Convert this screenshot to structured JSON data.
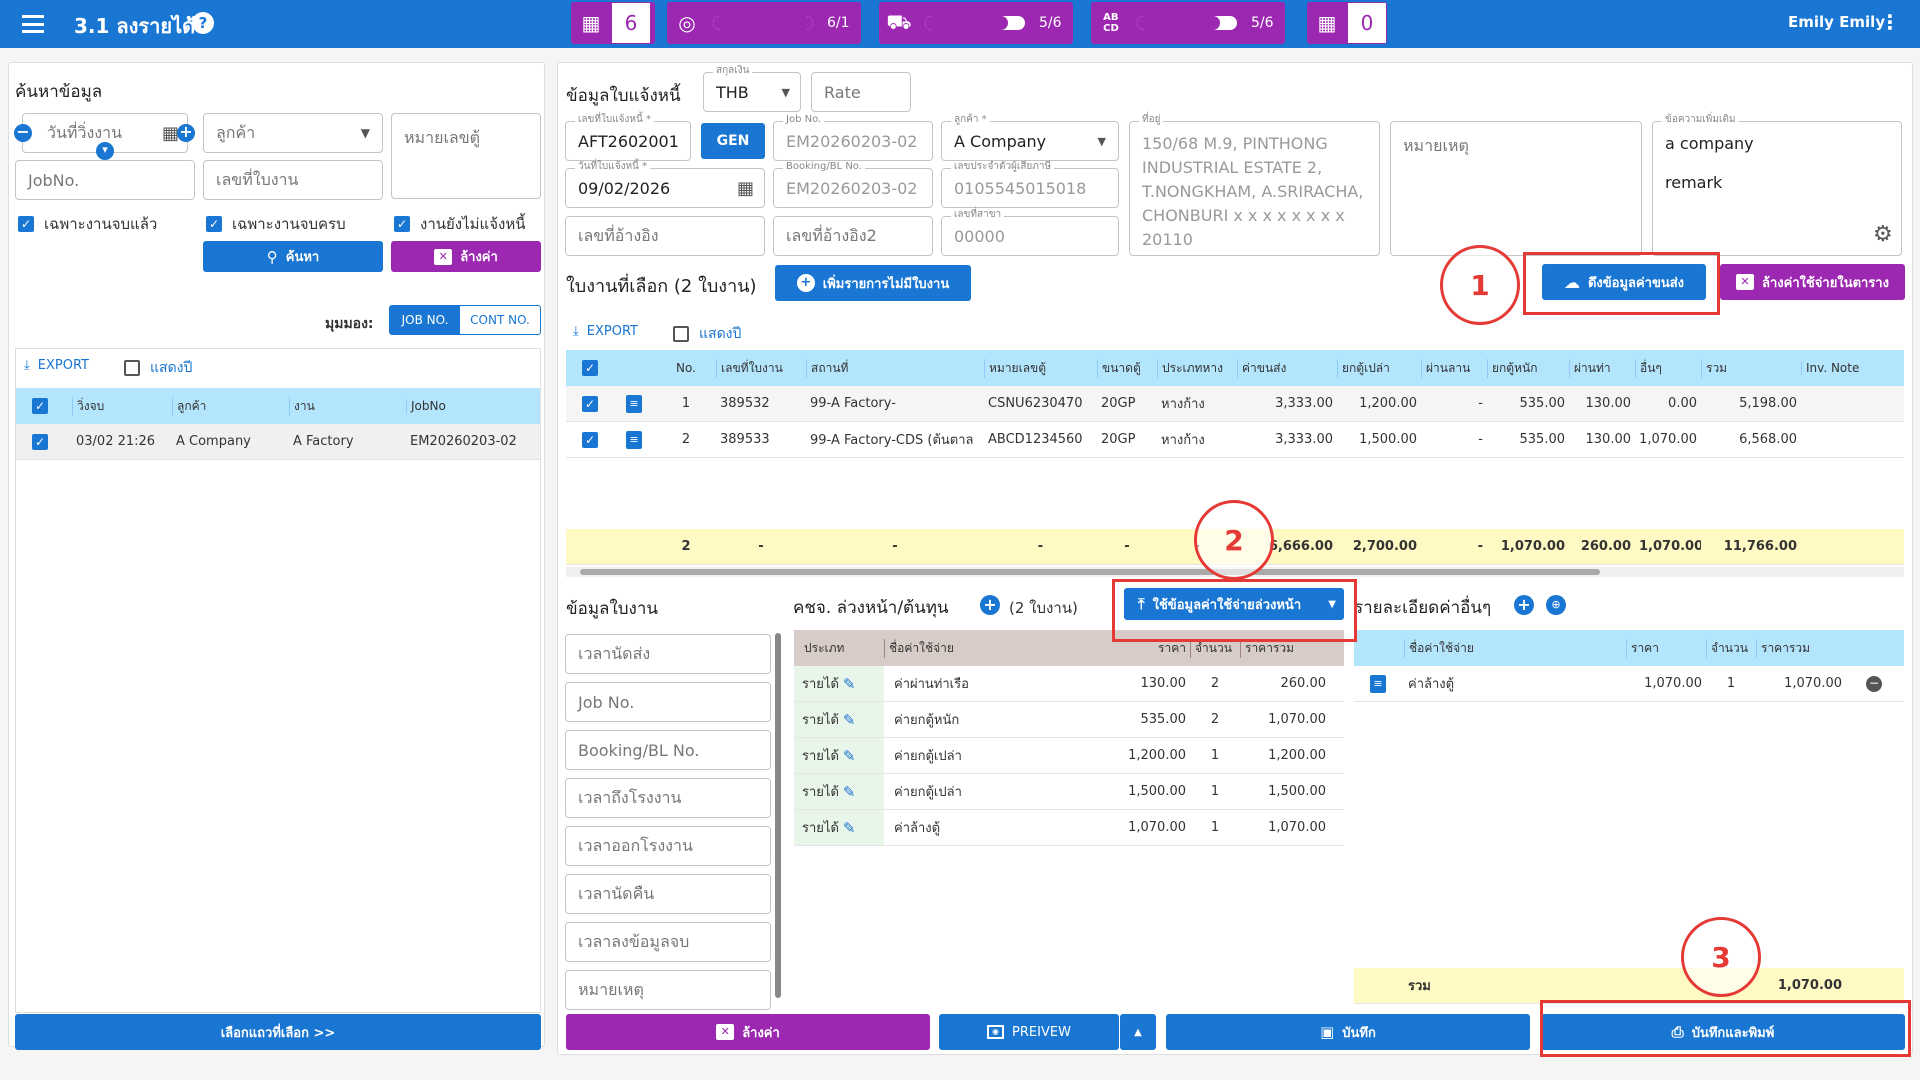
{
  "app": {
    "title": "3.1 ลงรายได้",
    "user": "Emily Emily"
  },
  "topbar": {
    "stats": [
      {
        "icon": "calendar-icon",
        "value": "6"
      },
      {
        "icon": "target-icon",
        "progress_text": "6/1",
        "progress": 1.0
      },
      {
        "icon": "truck-icon",
        "progress_text": "5/6",
        "progress": 0.83
      },
      {
        "icon": "abcd-icon",
        "progress_text": "5/6",
        "progress": 0.83
      },
      {
        "icon": "calendar-plus-icon",
        "value": "0"
      }
    ]
  },
  "search": {
    "title": "ค้นหาข้อมูล",
    "date_placeholder": "วันที่วิ่งงาน",
    "customer_placeholder": "ลูกค้า",
    "container_placeholder": "หมายเลขตู้",
    "jobno_placeholder": "JobNo.",
    "workorder_placeholder": "เลขที่ใบงาน",
    "chk_finished": "เฉพาะงานจบแล้ว",
    "chk_complete": "เฉพาะงานจบครบ",
    "chk_unbilled": "งานยังไม่แจ้งหนี้",
    "search_btn": "ค้นหา",
    "clear_btn": "ล้างค่า",
    "view_label": "มุมมอง:",
    "view_job": "JOB NO.",
    "view_cont": "CONT NO.",
    "export": "EXPORT",
    "show_year": "แสดงปี",
    "columns": [
      "วิ่งจบ",
      "ลูกค้า",
      "งาน",
      "JobNo"
    ],
    "rows": [
      [
        "03/02 21:26",
        "A Company",
        "A Factory",
        "EM20260203-02"
      ]
    ],
    "select_btn": "เลือกแถวที่เลือก >>"
  },
  "invoice": {
    "title": "ข้อมูลใบแจ้งหนี้",
    "currency_label": "สกุลเงิน",
    "currency": "THB",
    "rate_placeholder": "Rate",
    "inv_no_label": "เลขที่ใบแจ้งหนี้ *",
    "inv_no": "AFT2602001",
    "gen": "GEN",
    "jobno_label": "Job No.",
    "jobno": "EM20260203-02",
    "customer_label": "ลูกค้า *",
    "customer": "A Company",
    "address_label": "ที่อยู่",
    "address": "150/68 M.9, PINTHONG INDUSTRIAL ESTATE 2, T.NONGKHAM, A.SRIRACHA, CHONBURI x x x x x x x x 20110",
    "remark_placeholder": "หมายเหตุ",
    "extra_label": "ข้อความเพิ่มเติม",
    "extra_line1": "a company",
    "extra_line2": "remark",
    "date_label": "วันที่ใบแจ้งหนี้ *",
    "date": "09/02/2026",
    "booking_label": "Booking/BL No.",
    "booking": "EM20260203-02",
    "taxid_label": "เลขประจำตัวผู้เสียภาษี",
    "taxid": "0105545015018",
    "ref1_placeholder": "เลขที่อ้างอิง",
    "ref2_placeholder": "เลขที่อ้างอิง2",
    "branch_label": "เลขที่สาขา",
    "branch": "00000"
  },
  "selected": {
    "title": "ใบงานที่เลือก (2 ใบงาน)",
    "add_btn": "เพิ่มรายการไม่มีใบงาน",
    "fetch_btn": "ดึงข้อมูลค่าขนส่ง",
    "clear_btn": "ล้างค่าใช้จ่ายในตาราง",
    "export": "EXPORT",
    "show_year": "แสดงปี",
    "columns": [
      "No.",
      "เลขที่ใบงาน",
      "สถานที่",
      "หมายเลขตู้",
      "ขนาดตู้",
      "ประเภทหาง",
      "ค่าขนส่ง",
      "ยกตู้เปล่า",
      "ผ่านลาน",
      "ยกตู้หนัก",
      "ผ่านท่า",
      "อื่นๆ",
      "รวม",
      "Inv. Note"
    ],
    "rows": [
      [
        "1",
        "389532",
        "99-A Factory-",
        "CSNU6230470",
        "20GP",
        "หางก้าง",
        "3,333.00",
        "1,200.00",
        "-",
        "535.00",
        "130.00",
        "0.00",
        "5,198.00",
        ""
      ],
      [
        "2",
        "389533",
        "99-A Factory-CDS (ต้นตาล",
        "ABCD1234560",
        "20GP",
        "หางก้าง",
        "3,333.00",
        "1,500.00",
        "-",
        "535.00",
        "130.00",
        "1,070.00",
        "6,568.00",
        ""
      ]
    ],
    "total": [
      "2",
      "-",
      "-",
      "-",
      "-",
      "-",
      "6,666.00",
      "2,700.00",
      "-",
      "1,070.00",
      "260.00",
      "1,070.00",
      "11,766.00",
      ""
    ]
  },
  "job_info": {
    "title": "ข้อมูลใบงาน",
    "fields": [
      "เวลานัดส่ง",
      "Job No.",
      "Booking/BL No.",
      "เวลาถึงโรงงาน",
      "เวลาออกโรงงาน",
      "เวลานัดคืน",
      "เวลาลงข้อมูลจบ",
      "หมายเหตุ"
    ]
  },
  "advance": {
    "title": "คชจ. ล่วงหน้า/ต้นทุน",
    "count": "(2 ใบงาน)",
    "use_btn": "ใช้ข้อมูลค่าใช้จ่ายล่วงหน้า",
    "columns": [
      "ประเภท",
      "ชื่อค่าใช้จ่าย",
      "ราคา",
      "จำนวน",
      "ราคารวม"
    ],
    "rows": [
      [
        "รายได้",
        "ค่าผ่านท่าเรือ",
        "130.00",
        "2",
        "260.00"
      ],
      [
        "รายได้",
        "ค่ายกตู้หนัก",
        "535.00",
        "2",
        "1,070.00"
      ],
      [
        "รายได้",
        "ค่ายกตู้เปล่า",
        "1,200.00",
        "1",
        "1,200.00"
      ],
      [
        "รายได้",
        "ค่ายกตู้เปล่า",
        "1,500.00",
        "1",
        "1,500.00"
      ],
      [
        "รายได้",
        "ค่าล้างตู้",
        "1,070.00",
        "1",
        "1,070.00"
      ]
    ]
  },
  "other": {
    "title": "รายละเอียดค่าอื่นๆ",
    "columns": [
      "ชื่อค่าใช้จ่าย",
      "ราคา",
      "จำนวน",
      "ราคารวม"
    ],
    "rows": [
      [
        "ค่าล้างตู้",
        "1,070.00",
        "1",
        "1,070.00"
      ]
    ],
    "total_label": "รวม",
    "total": "1,070.00"
  },
  "footer": {
    "clear": "ล้างค่า",
    "preview": "PREIVEW",
    "save": "บันทึก",
    "save_print": "บันทึกและพิมพ์"
  },
  "annotations": [
    "1",
    "2",
    "3"
  ]
}
